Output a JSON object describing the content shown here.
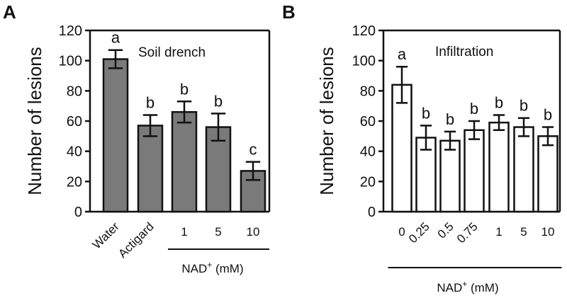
{
  "panels": [
    {
      "letter": "A",
      "annotation": "Soil drench",
      "group_label_main": "NAD",
      "group_label_sup": "+",
      "group_label_tail": " (mM)",
      "group_covers": [
        2,
        4
      ],
      "chart_data": {
        "type": "bar",
        "categories": [
          "Water",
          "Actigard",
          "1",
          "5",
          "10"
        ],
        "rotated_labels": [
          true,
          true,
          false,
          false,
          false
        ],
        "values": [
          101,
          57,
          66,
          56,
          27
        ],
        "errors": [
          6,
          7,
          7,
          9,
          6
        ],
        "letters": [
          "a",
          "b",
          "b",
          "b",
          "c"
        ],
        "bar_fill": "#7a7a7a",
        "ylabel": "Number of lesions",
        "ylim": [
          0,
          120
        ],
        "yticks": [
          0,
          20,
          40,
          60,
          80,
          100,
          120
        ],
        "grid": false
      }
    },
    {
      "letter": "B",
      "annotation": "Infiltration",
      "group_label_main": "NAD",
      "group_label_sup": "+",
      "group_label_tail": " (mM)",
      "group_covers": [
        0,
        6
      ],
      "chart_data": {
        "type": "bar",
        "categories": [
          "0",
          "0.25",
          "0.5",
          "0.75",
          "1",
          "5",
          "10"
        ],
        "rotated_labels": [
          false,
          true,
          true,
          true,
          false,
          false,
          false
        ],
        "values": [
          84,
          49,
          47,
          54,
          59,
          56,
          50
        ],
        "errors": [
          12,
          8,
          6,
          6,
          5,
          6,
          6
        ],
        "letters": [
          "a",
          "b",
          "b",
          "b",
          "b",
          "b",
          "b"
        ],
        "bar_fill": "#ffffff",
        "ylabel": "Number of lesions",
        "ylim": [
          0,
          120
        ],
        "yticks": [
          0,
          20,
          40,
          60,
          80,
          100,
          120
        ],
        "grid": false
      }
    }
  ]
}
